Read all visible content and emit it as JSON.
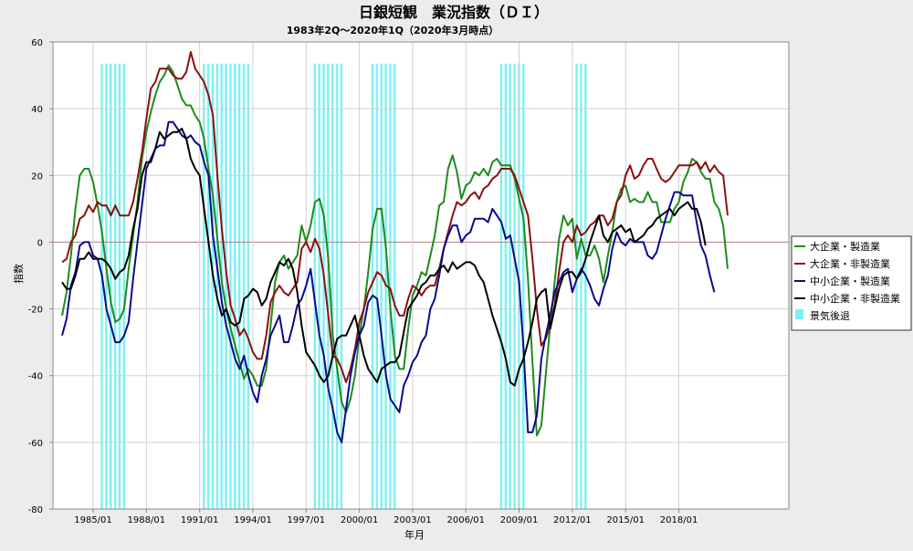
{
  "chart_data": {
    "type": "line",
    "title": "日銀短観　業況指数（ＤＩ）",
    "subtitle": "1983年2Q～2020年1Q（2020年3月時点）",
    "xlabel": "年月",
    "ylabel": "指数",
    "x_start": "1983Q2",
    "x_end": "2020Q1",
    "ylim": [
      -80,
      60
    ],
    "yticks": [
      -80,
      -60,
      -40,
      -20,
      0,
      20,
      40,
      60
    ],
    "xticks": [
      "1985/01",
      "1988/01",
      "1991/01",
      "1994/01",
      "1997/01",
      "2000/01",
      "2003/01",
      "2006/01",
      "2009/01",
      "2012/01",
      "2015/01",
      "2018/01"
    ],
    "grid": true,
    "legend_position": "right",
    "recession_label": "景気後退",
    "recessions": [
      [
        "1985Q3",
        "1986Q4"
      ],
      [
        "1991Q2",
        "1993Q4"
      ],
      [
        "1997Q3",
        "1999Q1"
      ],
      [
        "2000Q4",
        "2002Q1"
      ],
      [
        "2008Q1",
        "2009Q2"
      ],
      [
        "2012Q2",
        "2012Q4"
      ]
    ],
    "series": [
      {
        "name": "大企業・製造業",
        "color": "#1e8b1e",
        "values": [
          -22,
          -15,
          -4,
          10,
          20,
          22,
          22,
          18,
          11,
          3,
          -8,
          -18,
          -24,
          -23,
          -20,
          -8,
          2,
          12,
          25,
          33,
          39,
          44,
          48,
          50,
          53,
          51,
          47,
          43,
          41,
          41,
          38,
          36,
          31,
          22,
          14,
          1,
          -12,
          -20,
          -26,
          -31,
          -36,
          -41,
          -38,
          -40,
          -43,
          -43,
          -38,
          -25,
          -12,
          -6,
          -4,
          -8,
          -6,
          -4,
          5,
          0,
          5,
          12,
          13,
          8,
          -5,
          -28,
          -38,
          -48,
          -51,
          -47,
          -40,
          -28,
          -20,
          -9,
          4,
          10,
          10,
          -2,
          -20,
          -34,
          -38,
          -38,
          -26,
          -16,
          -13,
          -9,
          -10,
          -4,
          2,
          11,
          12,
          22,
          26,
          21,
          13,
          17,
          18,
          21,
          20,
          22,
          20,
          24,
          25,
          23,
          23,
          23,
          19,
          13,
          7,
          -11,
          -36,
          -58,
          -55,
          -40,
          -25,
          -12,
          1,
          8,
          5,
          7,
          -5,
          1,
          -4,
          -4,
          -1,
          -5,
          -12,
          -4,
          3,
          12,
          16,
          17,
          12,
          13,
          12,
          12,
          15,
          12,
          12,
          6,
          6,
          6,
          10,
          12,
          18,
          21,
          25,
          24,
          21,
          19,
          19,
          12,
          10,
          5,
          -8
        ]
      },
      {
        "name": "大企業・非製造業",
        "color": "#8b1010",
        "values": [
          -6,
          -5,
          0,
          2,
          7,
          8,
          11,
          9,
          12,
          11,
          11,
          8,
          11,
          8,
          8,
          8,
          12,
          19,
          27,
          37,
          46,
          48,
          52,
          52,
          52,
          50,
          49,
          49,
          51,
          57,
          52,
          50,
          48,
          44,
          38,
          20,
          4,
          -9,
          -19,
          -23,
          -28,
          -26,
          -29,
          -33,
          -35,
          -35,
          -28,
          -18,
          -15,
          -13,
          -15,
          -16,
          -14,
          -12,
          -2,
          0,
          -3,
          1,
          -2,
          -10,
          -22,
          -34,
          -35,
          -38,
          -42,
          -38,
          -32,
          -24,
          -20,
          -15,
          -12,
          -9,
          -10,
          -13,
          -14,
          -19,
          -22,
          -22,
          -17,
          -13,
          -14,
          -16,
          -14,
          -13,
          -13,
          -8,
          -2,
          3,
          8,
          12,
          11,
          12,
          14,
          15,
          13,
          16,
          17,
          19,
          20,
          22,
          22,
          22,
          20,
          16,
          12,
          8,
          -5,
          -20,
          -31,
          -29,
          -25,
          -19,
          -9,
          0,
          2,
          0,
          5,
          2,
          3,
          5,
          6,
          8,
          8,
          5,
          7,
          12,
          14,
          20,
          23,
          19,
          20,
          23,
          25,
          25,
          22,
          19,
          18,
          19,
          21,
          23,
          23,
          23,
          23,
          24,
          22,
          24,
          21,
          23,
          21,
          20,
          8
        ]
      },
      {
        "name": "中小企業・製造業",
        "color": "#0a0a8c",
        "values": [
          -28,
          -23,
          -13,
          -9,
          -1,
          0,
          0,
          -4,
          -5,
          -10,
          -20,
          -25,
          -30,
          -30,
          -28,
          -24,
          -11,
          0,
          11,
          22,
          25,
          28,
          29,
          29,
          36,
          36,
          34,
          32,
          31,
          32,
          30,
          29,
          24,
          20,
          2,
          -8,
          -18,
          -25,
          -30,
          -35,
          -38,
          -34,
          -40,
          -45,
          -48,
          -40,
          -35,
          -28,
          -25,
          -22,
          -30,
          -30,
          -25,
          -19,
          -17,
          -13,
          -8,
          -18,
          -28,
          -34,
          -44,
          -50,
          -57,
          -60,
          -50,
          -40,
          -33,
          -28,
          -25,
          -18,
          -16,
          -17,
          -28,
          -40,
          -47,
          -49,
          -51,
          -43,
          -40,
          -36,
          -34,
          -30,
          -28,
          -20,
          -17,
          -10,
          -2,
          2,
          5,
          5,
          0,
          2,
          3,
          7,
          7,
          7,
          6,
          10,
          8,
          6,
          1,
          2,
          -5,
          -12,
          -32,
          -57,
          -57,
          -52,
          -35,
          -28,
          -22,
          -15,
          -12,
          -9,
          -8,
          -15,
          -11,
          -8,
          -10,
          -13,
          -17,
          -19,
          -14,
          -10,
          -2,
          3,
          0,
          -1,
          1,
          0,
          0,
          0,
          -4,
          -5,
          -3,
          2,
          7,
          11,
          15,
          15,
          14,
          14,
          14,
          6,
          -1,
          -4,
          -10,
          -15
        ]
      },
      {
        "name": "中小企業・非製造業",
        "color": "#000000",
        "values": [
          -12,
          -14,
          -14,
          -10,
          -5,
          -5,
          -3,
          -5,
          -5,
          -5,
          -6,
          -8,
          -11,
          -9,
          -8,
          -4,
          4,
          10,
          20,
          24,
          24,
          28,
          33,
          31,
          32,
          33,
          33,
          34,
          31,
          25,
          22,
          20,
          10,
          0,
          -10,
          -17,
          -22,
          -20,
          -24,
          -25,
          -24,
          -17,
          -16,
          -14,
          -15,
          -19,
          -17,
          -12,
          -9,
          -6,
          -7,
          -5,
          -8,
          -15,
          -25,
          -33,
          -35,
          -37,
          -40,
          -42,
          -40,
          -34,
          -29,
          -28,
          -28,
          -25,
          -22,
          -28,
          -34,
          -38,
          -40,
          -42,
          -38,
          -37,
          -36,
          -36,
          -34,
          -27,
          -20,
          -18,
          -16,
          -13,
          -12,
          -10,
          -10,
          -8,
          -7,
          -9,
          -6,
          -8,
          -7,
          -6,
          -6,
          -7,
          -10,
          -12,
          -17,
          -22,
          -26,
          -30,
          -35,
          -42,
          -43,
          -38,
          -35,
          -30,
          -24,
          -17,
          -15,
          -14,
          -26,
          -20,
          -14,
          -10,
          -9,
          -9,
          -11,
          -9,
          -5,
          0,
          4,
          8,
          2,
          0,
          3,
          4,
          5,
          3,
          4,
          0,
          1,
          2,
          4,
          5,
          7,
          8,
          9,
          10,
          8,
          10,
          11,
          12,
          10,
          10,
          6,
          -1
        ]
      }
    ]
  }
}
